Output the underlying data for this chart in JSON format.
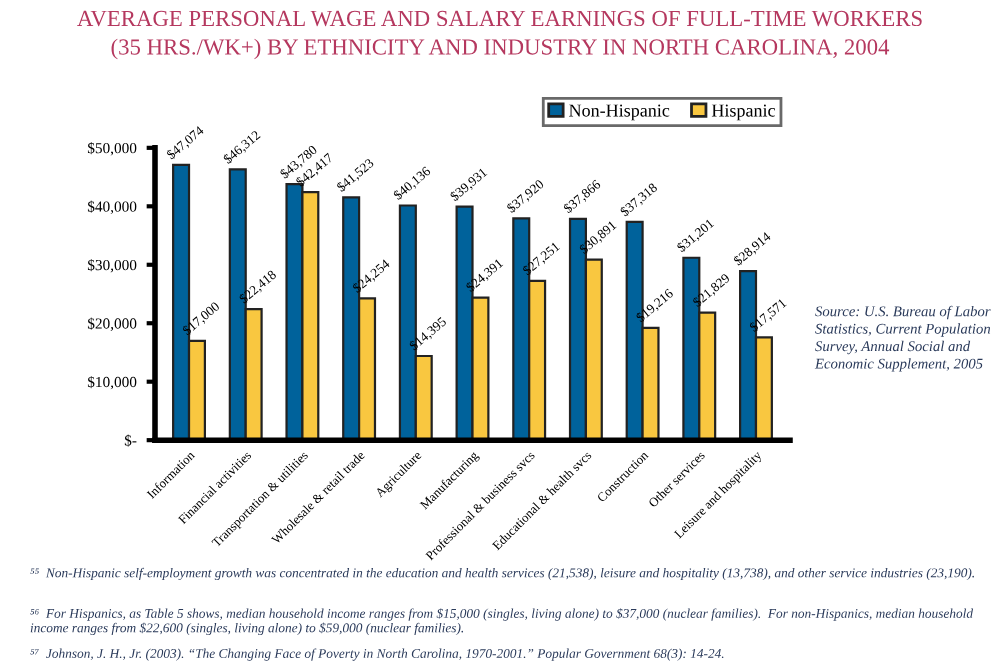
{
  "chart_data": {
    "type": "bar",
    "title": "AVERAGE PERSONAL WAGE AND SALARY EARNINGS OF FULL-TIME WORKERS\n(35 HRS./WK+) BY ETHNICITY AND INDUSTRY IN NORTH CAROLINA, 2004",
    "categories": [
      "Information",
      "Financial activities",
      "Transportation & utilities",
      "Wholesale & retail trade",
      "Agriculture",
      "Manufacturing",
      "Professional & business svcs",
      "Educational & health svcs",
      "Construction",
      "Other services",
      "Leisure and hospitality"
    ],
    "series": [
      {
        "name": "Non-Hispanic",
        "color": "#00629b",
        "values": [
          47074,
          46312,
          43780,
          41523,
          40136,
          39931,
          37920,
          37866,
          37318,
          31201,
          28914
        ],
        "value_labels": [
          "$47,074",
          "$46,312",
          "$43,780",
          "$41,523",
          "$40,136",
          "$39,931",
          "$37,920",
          "$37,866",
          "$37,318",
          "$31,201",
          "$28,914"
        ]
      },
      {
        "name": "Hispanic",
        "color": "#f9c740",
        "values": [
          17000,
          22418,
          42417,
          24254,
          14395,
          24391,
          27251,
          30891,
          19216,
          21829,
          17571
        ],
        "value_labels": [
          "$17,000",
          "$22,418",
          "$42,417",
          "$24,254",
          "$14,395",
          "$24,391",
          "$27,251",
          "$30,891",
          "$19,216",
          "$21,829",
          "$17,571"
        ]
      }
    ],
    "ylim": [
      0,
      50000
    ],
    "yticks": [
      {
        "value": 0,
        "label": "$-"
      },
      {
        "value": 10000,
        "label": "$10,000"
      },
      {
        "value": 20000,
        "label": "$20,000"
      },
      {
        "value": 30000,
        "label": "$30,000"
      },
      {
        "value": 40000,
        "label": "$40,000"
      },
      {
        "value": 50000,
        "label": "$50,000"
      }
    ],
    "legend": "top right",
    "grid": false,
    "annotations": [
      "Source: U.S. Bureau of Labor Statistics, Current Population Survey, Annual Social and Economic Supplement, 2005",
      "⁵⁵  Non-Hispanic self-employment growth was concentrated in the education and health services (21,538), leisure and hospitality (13,738), and other service industries (23,190).",
      "⁵⁶  For Hispanics, as Table 5 shows, median household income ranges from $15,000 (singles, living alone) to $37,000 (nuclear families).  For non-Hispanics, median household income ranges from $22,600 (singles, living alone) to $59,000 (nuclear families).",
      "⁵⁷  Johnson, J. H., Jr. (2003). “The Changing Face of Poverty in North Carolina, 1970-2001.” Popular Government 68(3): 14-24."
    ]
  }
}
